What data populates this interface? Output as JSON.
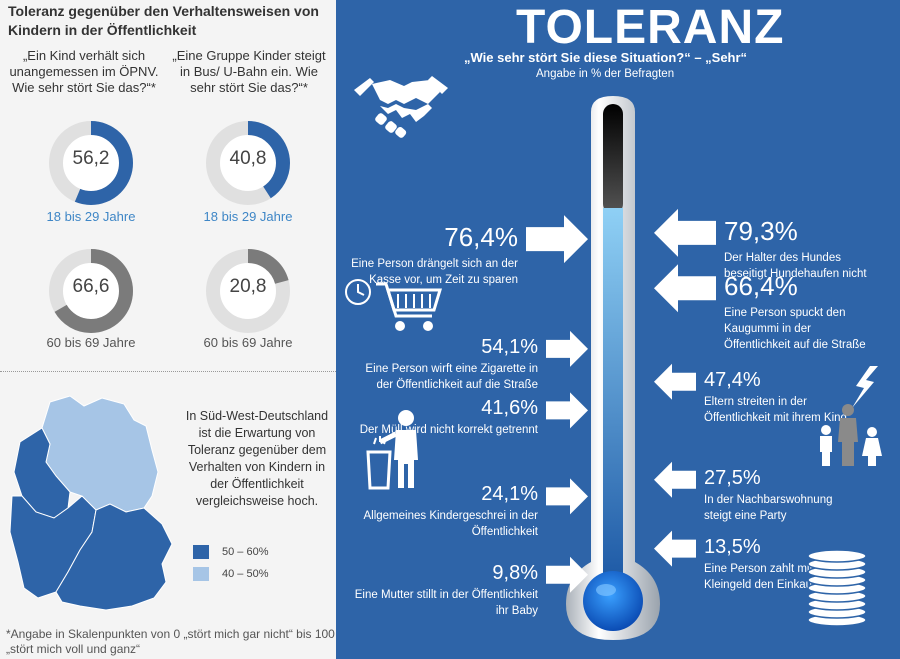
{
  "left": {
    "title": "Toleranz gegenüber den Verhaltensweisen von Kindern in der Öffentlichkeit",
    "quote1": "„Ein Kind verhält sich unangemessen im ÖPNV. Wie sehr stört Sie das?“*",
    "quote2": "„Eine Gruppe Kinder steigt in Bus/ U-Bahn ein. Wie sehr stört Sie das?“*",
    "age_young": "18 bis 29 Jahre",
    "age_old": "60 bis 69 Jahre",
    "map_note": "In Süd-West-Deutschland ist die Erwartung von Toleranz gegenüber dem Verhalten von Kindern in der Öffentlichkeit vergleichsweise hoch.",
    "legend": [
      {
        "label": "50 – 60%",
        "color": "#2e64a8"
      },
      {
        "label": "40 – 50%",
        "color": "#a6c5e6"
      }
    ],
    "footnote": "*Angabe in Skalenpunkten von 0 „stört mich gar nicht“ bis 100 „stört mich voll und ganz“"
  },
  "right": {
    "heading": "TOLERANZ",
    "subtitle": "„Wie sehr stört Sie diese Situation?“ – „Sehr“",
    "subtitle2": "Angabe in % der Befragten"
  },
  "colors": {
    "dark_blue": "#2e64a8",
    "light_blue": "#3e86c6",
    "grey": "#7b7b7b",
    "ring_bg": "#e0e0e0"
  },
  "chart_data": [
    {
      "type": "pie",
      "subtype": "donut",
      "scale": "0–100 Skalenpunkte",
      "series": [
        {
          "label": "„Ein Kind verhält sich unangemessen im ÖPNV. Wie sehr stört Sie das?“*",
          "values": [
            {
              "group": "18 bis 29 Jahre",
              "value": 56.2
            },
            {
              "group": "60 bis 69 Jahre",
              "value": 66.6
            }
          ]
        },
        {
          "label": "„Eine Gruppe Kinder steigt in Bus/ U-Bahn ein. Wie sehr stört Sie das?“*",
          "values": [
            {
              "group": "18 bis 29 Jahre",
              "value": 40.8
            },
            {
              "group": "60 bis 69 Jahre",
              "value": 20.8
            }
          ]
        }
      ]
    },
    {
      "type": "bar",
      "title": "TOLERANZ",
      "subtitle": "„Wie sehr stört Sie diese Situation?“ – „Sehr“",
      "unit": "Angabe in % der Befragten",
      "categories": [
        "Der Halter des Hundes beseitigt Hundehaufen nicht",
        "Eine Person drängelt sich an der Kasse vor, um Zeit zu sparen",
        "Eine Person spuckt den Kaugummi in der Öffentlichkeit auf die Straße",
        "Eine Person wirft eine Zigarette in der Öffentlichkeit auf die Straße",
        "Eltern streiten in der Öffentlichkeit mit ihrem Kind",
        "Der Müll wird nicht korrekt getrennt",
        "In der Nachbarswohnung steigt eine Party",
        "Allgemeines Kindergeschrei in der Öffentlichkeit",
        "Eine Person zahlt mit Kleingeld den Einkauf",
        "Eine Mutter stillt in der Öffentlichkeit ihr Baby"
      ],
      "values": [
        79.3,
        76.4,
        66.4,
        54.1,
        47.4,
        41.6,
        27.5,
        24.1,
        13.5,
        9.8
      ],
      "labels": [
        "79,3%",
        "76,4%",
        "66,4%",
        "54,1%",
        "47,4%",
        "41,6%",
        "27,5%",
        "24,1%",
        "13,5%",
        "9,8%"
      ],
      "sides": [
        "right",
        "left",
        "right",
        "left",
        "right",
        "left",
        "right",
        "left",
        "right",
        "left"
      ],
      "ylim": [
        0,
        100
      ]
    }
  ]
}
